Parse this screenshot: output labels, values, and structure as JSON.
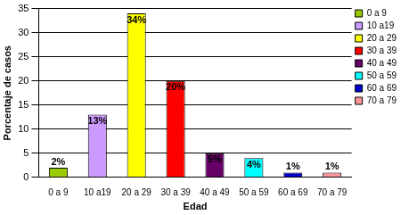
{
  "chart_data": {
    "type": "bar",
    "x_label": "Edad",
    "y_label": "Porcentaje de casos",
    "categories": [
      "0 a 9",
      "10 a19",
      "20 a 29",
      "30 a 39",
      "40 a 49",
      "50 a 59",
      "60 a 69",
      "70 a 79"
    ],
    "values": [
      2,
      13,
      34,
      20,
      5,
      4,
      1,
      1
    ],
    "value_labels": [
      "2%",
      "13%",
      "34%",
      "20%",
      "5%",
      "4%",
      "1%",
      "1%"
    ],
    "colors": [
      "#99cc00",
      "#cc99ff",
      "#ffff00",
      "#ff0000",
      "#660066",
      "#00ffff",
      "#0000cc",
      "#ff9999"
    ],
    "ylim": [
      0,
      35
    ],
    "yticks": [
      0,
      5,
      10,
      15,
      20,
      25,
      30,
      35
    ],
    "grid": true,
    "legend": "right",
    "data_labels": true
  }
}
